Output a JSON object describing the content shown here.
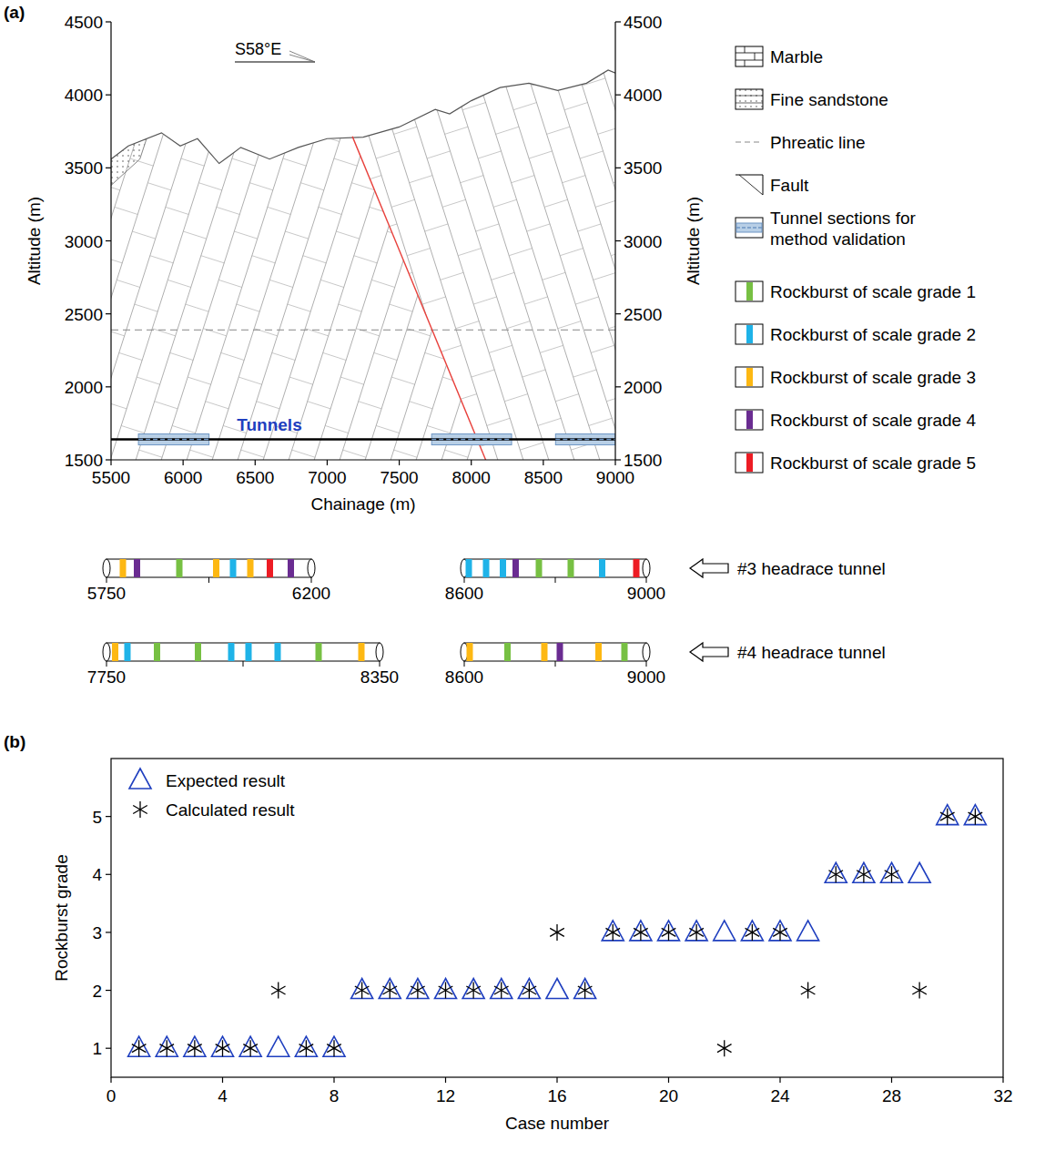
{
  "chart_data": [
    {
      "type": "cross_section",
      "panel_label": "(a)",
      "direction_label": "S58°E",
      "x_label": "Chainage (m)",
      "y_label": "Altitude  (m)",
      "y2_label": "Altitude  (m)",
      "xlim": [
        5500,
        9000
      ],
      "xticks": [
        5500,
        6000,
        6500,
        7000,
        7500,
        8000,
        8500,
        9000
      ],
      "ylim": [
        1500,
        4500
      ],
      "yticks": [
        1500,
        2000,
        2500,
        3000,
        3500,
        4000,
        4500
      ],
      "y2lim": [
        1500,
        4500
      ],
      "y2ticks": [
        1500,
        2000,
        2500,
        3000,
        3500,
        4000,
        4500
      ],
      "terrain": {
        "x": [
          5500,
          5620,
          5850,
          5980,
          6100,
          6250,
          6400,
          6600,
          6800,
          7000,
          7250,
          7500,
          7750,
          7850,
          8000,
          8200,
          8400,
          8600,
          8800,
          8950,
          9000
        ],
        "y": [
          3560,
          3650,
          3740,
          3650,
          3700,
          3530,
          3640,
          3560,
          3640,
          3700,
          3710,
          3780,
          3900,
          3870,
          3960,
          4050,
          4080,
          4030,
          4080,
          4170,
          4150
        ]
      },
      "sandstone": {
        "x": [
          5500,
          5500,
          5780,
          5700
        ],
        "y": [
          3380,
          3800,
          3800,
          3560
        ]
      },
      "fault": {
        "x": [
          7175,
          8100
        ],
        "y": [
          3715,
          1500
        ]
      },
      "phreatic_line": 2390,
      "tunnel_label": "Tunnels",
      "tunnel_altitude": 1640,
      "validation_sections": [
        [
          5690,
          6180
        ],
        [
          7725,
          8280
        ],
        [
          8585,
          9000
        ]
      ],
      "legend_items": [
        {
          "name": "Marble",
          "symbol": "marble"
        },
        {
          "name": "Fine sandstone",
          "symbol": "sandstone"
        },
        {
          "name": "Phreatic line",
          "symbol": "phreatic"
        },
        {
          "name": "Fault",
          "symbol": "fault"
        },
        {
          "name": "Tunnel sections for method validation",
          "symbol": "section"
        }
      ],
      "rockburst_grades": [
        {
          "name": "Rockburst of scale grade 1",
          "grade": 1,
          "color": "#77c043"
        },
        {
          "name": "Rockburst of scale grade 2",
          "grade": 2,
          "color": "#1fb3e8"
        },
        {
          "name": "Rockburst of scale grade 3",
          "grade": 3,
          "color": "#fdb813"
        },
        {
          "name": "Rockburst of scale grade 4",
          "grade": 4,
          "color": "#6a2c91"
        },
        {
          "name": "Rockburst of scale grade 5",
          "grade": 5,
          "color": "#ed1c24"
        }
      ]
    },
    {
      "type": "strip",
      "tunnels": [
        {
          "name": "#3 headrace tunnel",
          "segments": [
            {
              "range": [
                5750,
                6200
              ],
              "ticks": [
                5750,
                6200
              ],
              "minor_ticks": [
                5975
              ],
              "chainages": [
                5786,
                5817,
                5910,
                5991,
                6028,
                6066,
                6109,
                6155
              ],
              "grades": [
                3,
                4,
                1,
                3,
                2,
                3,
                5,
                4
              ]
            },
            {
              "range": [
                8600,
                9000
              ],
              "ticks": [
                8600,
                9000
              ],
              "minor_ticks": [
                8800
              ],
              "chainages": [
                8610,
                8648,
                8685,
                8713,
                8764,
                8834,
                8903,
                8978
              ],
              "grades": [
                2,
                2,
                2,
                4,
                1,
                1,
                2,
                5
              ]
            }
          ]
        },
        {
          "name": "#4 headrace tunnel",
          "segments": [
            {
              "range": [
                7750,
                8350
              ],
              "ticks": [
                7750,
                8350
              ],
              "minor_ticks": [
                8050
              ],
              "chainages": [
                7769,
                7796,
                7861,
                7951,
                8024,
                8062,
                8126,
                8216,
                8310
              ],
              "grades": [
                3,
                2,
                1,
                1,
                2,
                2,
                2,
                1,
                3
              ]
            },
            {
              "range": [
                8600,
                9000
              ],
              "ticks": [
                8600,
                9000
              ],
              "minor_ticks": [
                8800
              ],
              "chainages": [
                8612,
                8695,
                8776,
                8810,
                8895,
                8952
              ],
              "grades": [
                3,
                1,
                3,
                4,
                3,
                1
              ]
            }
          ]
        }
      ]
    },
    {
      "type": "scatter",
      "panel_label": "(b)",
      "x_label": "Case number",
      "y_label": "Rockburst grade",
      "xlim": [
        0,
        32
      ],
      "xticks": [
        0,
        4,
        8,
        12,
        16,
        20,
        24,
        28,
        32
      ],
      "ylim": [
        0.5,
        6
      ],
      "yticks": [
        1,
        2,
        3,
        4,
        5
      ],
      "legend": "upper left",
      "series": [
        {
          "name": "Expected result",
          "color": "#1f3fbf",
          "marker": "triangle",
          "x": [
            1,
            2,
            3,
            4,
            5,
            6,
            7,
            8,
            9,
            10,
            11,
            12,
            13,
            14,
            15,
            16,
            17,
            18,
            19,
            20,
            21,
            22,
            23,
            24,
            25,
            26,
            27,
            28,
            29,
            30,
            31
          ],
          "values": [
            1,
            1,
            1,
            1,
            1,
            1,
            1,
            1,
            2,
            2,
            2,
            2,
            2,
            2,
            2,
            2,
            2,
            3,
            3,
            3,
            3,
            3,
            3,
            3,
            3,
            4,
            4,
            4,
            4,
            5,
            5
          ]
        },
        {
          "name": "Calculated result",
          "color": "#000000",
          "marker": "asterisk",
          "x": [
            1,
            2,
            3,
            4,
            5,
            6,
            7,
            8,
            9,
            10,
            11,
            12,
            13,
            14,
            15,
            16,
            17,
            18,
            19,
            20,
            21,
            22,
            23,
            24,
            25,
            26,
            27,
            28,
            29,
            30,
            31
          ],
          "values": [
            1,
            1,
            1,
            1,
            1,
            2,
            1,
            1,
            2,
            2,
            2,
            2,
            2,
            2,
            2,
            3,
            2,
            3,
            3,
            3,
            3,
            1,
            3,
            3,
            2,
            4,
            4,
            4,
            2,
            5,
            5
          ]
        }
      ]
    }
  ]
}
